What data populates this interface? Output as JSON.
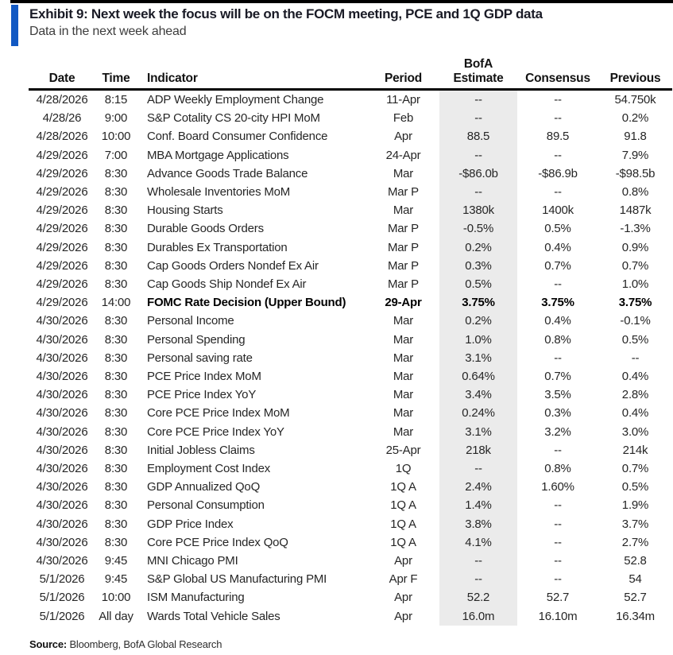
{
  "exhibit": {
    "title": "Exhibit 9: Next week the focus will be on the FOCM meeting, PCE and 1Q GDP data",
    "subtitle": "Data in the next week ahead"
  },
  "colors": {
    "accent_blue": "#1259c3",
    "top_rule": "#000000",
    "estimate_column_shade": "#ebebeb",
    "title_text": "#1a1b26",
    "body_text": "#262626"
  },
  "table": {
    "headers": {
      "date": "Date",
      "time": "Time",
      "indicator": "Indicator",
      "period": "Period",
      "estimate_line1": "BofA",
      "estimate_line2": "Estimate",
      "consensus": "Consensus",
      "previous": "Previous"
    },
    "rows": [
      {
        "date": "4/28/2026",
        "time": "8:15",
        "indicator": "ADP Weekly Employment Change",
        "period": "11-Apr",
        "estimate": "--",
        "consensus": "--",
        "previous": "54.750k",
        "bold": false
      },
      {
        "date": "4/28/26",
        "time": "9:00",
        "indicator": "S&P Cotality CS 20-city HPI MoM",
        "period": "Feb",
        "estimate": "--",
        "consensus": "--",
        "previous": "0.2%",
        "bold": false
      },
      {
        "date": "4/28/2026",
        "time": "10:00",
        "indicator": "Conf. Board Consumer Confidence",
        "period": "Apr",
        "estimate": "88.5",
        "consensus": "89.5",
        "previous": "91.8",
        "bold": false
      },
      {
        "date": "4/29/2026",
        "time": "7:00",
        "indicator": "MBA Mortgage Applications",
        "period": "24-Apr",
        "estimate": "--",
        "consensus": "--",
        "previous": "7.9%",
        "bold": false
      },
      {
        "date": "4/29/2026",
        "time": "8:30",
        "indicator": "Advance Goods Trade Balance",
        "period": "Mar",
        "estimate": "-$86.0b",
        "consensus": "-$86.9b",
        "previous": "-$98.5b",
        "bold": false
      },
      {
        "date": "4/29/2026",
        "time": "8:30",
        "indicator": "Wholesale Inventories MoM",
        "period": "Mar P",
        "estimate": "--",
        "consensus": "--",
        "previous": "0.8%",
        "bold": false
      },
      {
        "date": "4/29/2026",
        "time": "8:30",
        "indicator": "Housing Starts",
        "period": "Mar",
        "estimate": "1380k",
        "consensus": "1400k",
        "previous": "1487k",
        "bold": false
      },
      {
        "date": "4/29/2026",
        "time": "8:30",
        "indicator": "Durable Goods Orders",
        "period": "Mar P",
        "estimate": "-0.5%",
        "consensus": "0.5%",
        "previous": "-1.3%",
        "bold": false
      },
      {
        "date": "4/29/2026",
        "time": "8:30",
        "indicator": "Durables Ex Transportation",
        "period": "Mar P",
        "estimate": "0.2%",
        "consensus": "0.4%",
        "previous": "0.9%",
        "bold": false
      },
      {
        "date": "4/29/2026",
        "time": "8:30",
        "indicator": "Cap Goods Orders Nondef Ex Air",
        "period": "Mar P",
        "estimate": "0.3%",
        "consensus": "0.7%",
        "previous": "0.7%",
        "bold": false
      },
      {
        "date": "4/29/2026",
        "time": "8:30",
        "indicator": "Cap Goods Ship Nondef Ex Air",
        "period": "Mar P",
        "estimate": "0.5%",
        "consensus": "--",
        "previous": "1.0%",
        "bold": false
      },
      {
        "date": "4/29/2026",
        "time": "14:00",
        "indicator": "FOMC Rate Decision (Upper Bound)",
        "period": "29-Apr",
        "estimate": "3.75%",
        "consensus": "3.75%",
        "previous": "3.75%",
        "bold": true
      },
      {
        "date": "4/30/2026",
        "time": "8:30",
        "indicator": "Personal Income",
        "period": "Mar",
        "estimate": "0.2%",
        "consensus": "0.4%",
        "previous": "-0.1%",
        "bold": false
      },
      {
        "date": "4/30/2026",
        "time": "8:30",
        "indicator": "Personal Spending",
        "period": "Mar",
        "estimate": "1.0%",
        "consensus": "0.8%",
        "previous": "0.5%",
        "bold": false
      },
      {
        "date": "4/30/2026",
        "time": "8:30",
        "indicator": "Personal saving rate",
        "period": "Mar",
        "estimate": "3.1%",
        "consensus": "--",
        "previous": "--",
        "bold": false
      },
      {
        "date": "4/30/2026",
        "time": "8:30",
        "indicator": "PCE Price Index MoM",
        "period": "Mar",
        "estimate": "0.64%",
        "consensus": "0.7%",
        "previous": "0.4%",
        "bold": false
      },
      {
        "date": "4/30/2026",
        "time": "8:30",
        "indicator": "PCE Price Index YoY",
        "period": "Mar",
        "estimate": "3.4%",
        "consensus": "3.5%",
        "previous": "2.8%",
        "bold": false
      },
      {
        "date": "4/30/2026",
        "time": "8:30",
        "indicator": "Core PCE Price Index MoM",
        "period": "Mar",
        "estimate": "0.24%",
        "consensus": "0.3%",
        "previous": "0.4%",
        "bold": false
      },
      {
        "date": "4/30/2026",
        "time": "8:30",
        "indicator": "Core PCE Price Index YoY",
        "period": "Mar",
        "estimate": "3.1%",
        "consensus": "3.2%",
        "previous": "3.0%",
        "bold": false
      },
      {
        "date": "4/30/2026",
        "time": "8:30",
        "indicator": "Initial Jobless Claims",
        "period": "25-Apr",
        "estimate": "218k",
        "consensus": "--",
        "previous": "214k",
        "bold": false
      },
      {
        "date": "4/30/2026",
        "time": "8:30",
        "indicator": "Employment Cost Index",
        "period": "1Q",
        "estimate": "--",
        "consensus": "0.8%",
        "previous": "0.7%",
        "bold": false
      },
      {
        "date": "4/30/2026",
        "time": "8:30",
        "indicator": "GDP Annualized QoQ",
        "period": "1Q A",
        "estimate": "2.4%",
        "consensus": "1.60%",
        "previous": "0.5%",
        "bold": false
      },
      {
        "date": "4/30/2026",
        "time": "8:30",
        "indicator": "Personal Consumption",
        "period": "1Q A",
        "estimate": "1.4%",
        "consensus": "--",
        "previous": "1.9%",
        "bold": false
      },
      {
        "date": "4/30/2026",
        "time": "8:30",
        "indicator": "GDP Price Index",
        "period": "1Q A",
        "estimate": "3.8%",
        "consensus": "--",
        "previous": "3.7%",
        "bold": false
      },
      {
        "date": "4/30/2026",
        "time": "8:30",
        "indicator": "Core PCE Price Index QoQ",
        "period": "1Q A",
        "estimate": "4.1%",
        "consensus": "--",
        "previous": "2.7%",
        "bold": false
      },
      {
        "date": "4/30/2026",
        "time": "9:45",
        "indicator": "MNI Chicago PMI",
        "period": "Apr",
        "estimate": "--",
        "consensus": "--",
        "previous": "52.8",
        "bold": false
      },
      {
        "date": "5/1/2026",
        "time": "9:45",
        "indicator": "S&P Global US Manufacturing PMI",
        "period": "Apr F",
        "estimate": "--",
        "consensus": "--",
        "previous": "54",
        "bold": false
      },
      {
        "date": "5/1/2026",
        "time": "10:00",
        "indicator": "ISM Manufacturing",
        "period": "Apr",
        "estimate": "52.2",
        "consensus": "52.7",
        "previous": "52.7",
        "bold": false
      },
      {
        "date": "5/1/2026",
        "time": "All day",
        "indicator": "Wards Total Vehicle Sales",
        "period": "Apr",
        "estimate": "16.0m",
        "consensus": "16.10m",
        "previous": "16.34m",
        "bold": false
      }
    ]
  },
  "source": {
    "label": "Source:",
    "text": "Bloomberg, BofA Global Research"
  }
}
